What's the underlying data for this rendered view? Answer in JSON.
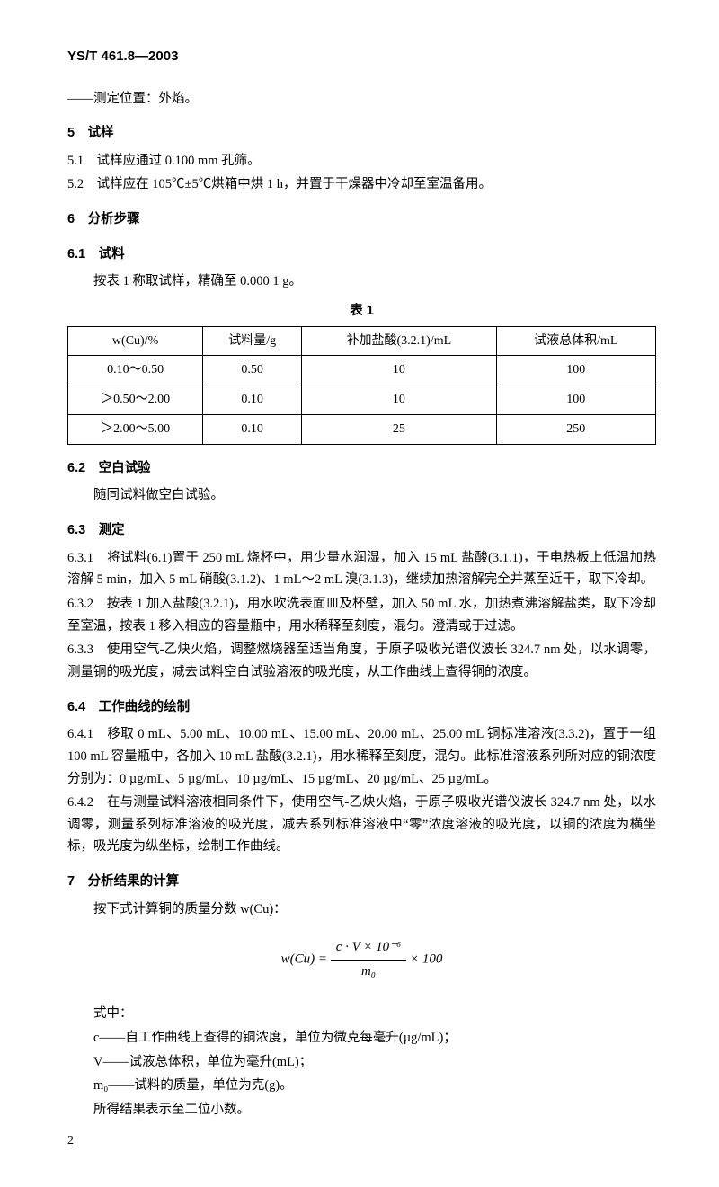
{
  "header": {
    "code": "YS/T 461.8—2003"
  },
  "line_pos": "——测定位置：外焰。",
  "s5": {
    "title": "5　试样",
    "p1": "5.1　试样应通过 0.100 mm 孔筛。",
    "p2": "5.2　试样应在 105℃±5℃烘箱中烘 1 h，并置于干燥器中冷却至室温备用。"
  },
  "s6": {
    "title": "6　分析步骤",
    "s61_title": "6.1　试料",
    "s61_text": "按表 1 称取试样，精确至 0.000 1 g。",
    "table_title": "表 1",
    "table": {
      "columns": [
        "w(Cu)/%",
        "试料量/g",
        "补加盐酸(3.2.1)/mL",
        "试液总体积/mL"
      ],
      "rows": [
        [
          "0.10～0.50",
          "0.50",
          "10",
          "100"
        ],
        [
          "＞0.50～2.00",
          "0.10",
          "10",
          "100"
        ],
        [
          "＞2.00～5.00",
          "0.10",
          "25",
          "250"
        ]
      ],
      "border_color": "#000000",
      "cell_align": "center",
      "font_size": 14
    },
    "s62_title": "6.2　空白试验",
    "s62_text": "随同试料做空白试验。",
    "s63_title": "6.3　测定",
    "s631": "6.3.1　将试料(6.1)置于 250 mL 烧杯中，用少量水润湿，加入 15 mL 盐酸(3.1.1)，于电热板上低温加热溶解 5 min，加入 5 mL 硝酸(3.1.2)、1 mL～2 mL 溴(3.1.3)，继续加热溶解完全并蒸至近干，取下冷却。",
    "s632": "6.3.2　按表 1 加入盐酸(3.2.1)，用水吹洗表面皿及杯壁，加入 50 mL 水，加热煮沸溶解盐类，取下冷却至室温，按表 1 移入相应的容量瓶中，用水稀释至刻度，混匀。澄清或于过滤。",
    "s633": "6.3.3　使用空气-乙炔火焰，调整燃烧器至适当角度，于原子吸收光谱仪波长 324.7 nm 处，以水调零，测量铜的吸光度，减去试料空白试验溶液的吸光度，从工作曲线上查得铜的浓度。",
    "s64_title": "6.4　工作曲线的绘制",
    "s641": "6.4.1　移取 0 mL、5.00 mL、10.00 mL、15.00 mL、20.00 mL、25.00 mL 铜标准溶液(3.3.2)，置于一组 100 mL 容量瓶中，各加入 10 mL 盐酸(3.2.1)，用水稀释至刻度，混匀。此标准溶液系列所对应的铜浓度分别为：0 µg/mL、5 µg/mL、10 µg/mL、15 µg/mL、20 µg/mL、25 µg/mL。",
    "s642": "6.4.2　在与测量试料溶液相同条件下，使用空气-乙炔火焰，于原子吸收光谱仪波长 324.7 nm 处，以水调零，测量系列标准溶液的吸光度，减去系列标准溶液中“零”浓度溶液的吸光度，以铜的浓度为横坐标，吸光度为纵坐标，绘制工作曲线。"
  },
  "s7": {
    "title": "7　分析结果的计算",
    "intro": "按下式计算铜的质量分数 w(Cu)：",
    "formula": {
      "lhs": "w(Cu)",
      "num": "c · V × 10⁻⁶",
      "den": "m₀",
      "tail": " × 100"
    },
    "where_label": "式中：",
    "def_c": "c——自工作曲线上查得的铜浓度，单位为微克每毫升(µg/mL)；",
    "def_v": "V——试液总体积，单位为毫升(mL)；",
    "def_m": "m₀——试料的质量，单位为克(g)。",
    "note": "所得结果表示至二位小数。"
  },
  "page_number": "2"
}
